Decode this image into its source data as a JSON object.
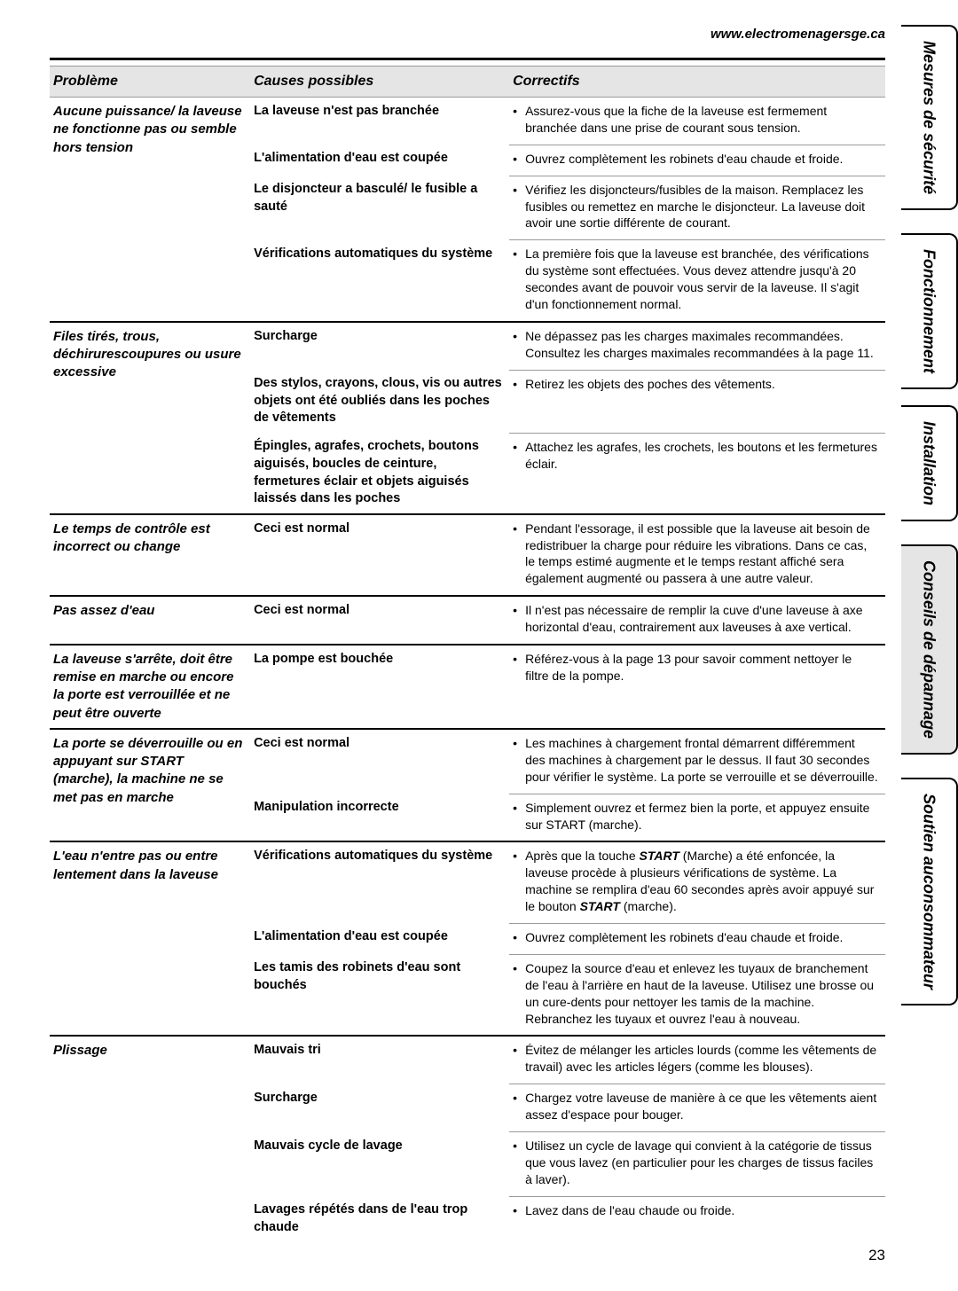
{
  "url": "www.electromenagersge.ca",
  "headers": {
    "problem": "Problème",
    "causes": "Causes possibles",
    "correctives": "Correctifs"
  },
  "tabs": {
    "t1": "Mesures de sécurité",
    "t2": "Fonctionnement",
    "t3": "Installation",
    "t4": "Conseils de dépannage",
    "t5a": "Soutien au",
    "t5b": "consommateur"
  },
  "rows": {
    "r1": {
      "problem": "Aucune puissance/ la laveuse ne fonctionne pas ou semble hors tension",
      "c1": {
        "cause": "La laveuse n'est pas branchée",
        "corr": "Assurez-vous que la fiche de la laveuse est fermement branchée dans une prise de courant sous tension."
      },
      "c2": {
        "cause": "L'alimentation d'eau est coupée",
        "corr": "Ouvrez complètement les robinets d'eau chaude et froide."
      },
      "c3": {
        "cause": "Le disjoncteur a basculé/ le fusible a sauté",
        "corr": "Vérifiez les disjoncteurs/fusibles de la maison. Remplacez les fusibles ou remettez en marche le disjoncteur. La laveuse doit avoir une sortie différente de courant."
      },
      "c4": {
        "cause": "Vérifications automatiques du système",
        "corr": "La première fois que la laveuse est branchée, des vérifications du système sont effectuées. Vous devez attendre jusqu'à 20 secondes avant de pouvoir vous servir de la laveuse. Il s'agit d'un fonctionnement normal."
      }
    },
    "r2": {
      "problem": "Files tirés, trous, déchirurescoupures ou usure excessive",
      "c1": {
        "cause": "Surcharge",
        "corr": "Ne dépassez pas les charges maximales recommandées. Consultez les charges maximales recommandées à la page 11."
      },
      "c2": {
        "cause": "Des stylos, crayons, clous, vis ou autres objets ont été oubliés dans les poches de vêtements",
        "corr": "Retirez les objets des poches des vêtements."
      },
      "c3": {
        "cause": "Épingles, agrafes, crochets, boutons aiguisés, boucles de ceinture, fermetures éclair et objets aiguisés laissés dans les poches",
        "corr": "Attachez les agrafes, les crochets, les boutons et les fermetures éclair."
      }
    },
    "r3": {
      "problem": "Le temps de contrôle est incorrect ou change",
      "c1": {
        "cause": "Ceci est normal",
        "corr": "Pendant l'essorage, il est possible que la laveuse ait besoin de redistribuer la charge pour réduire les vibrations. Dans ce cas, le temps estimé augmente et le temps restant affiché sera également augmenté ou passera à une autre valeur."
      }
    },
    "r4": {
      "problem": "Pas assez d'eau",
      "c1": {
        "cause": "Ceci est normal",
        "corr": "Il n'est pas nécessaire de remplir la cuve d'une laveuse à axe horizontal d'eau, contrairement aux laveuses à axe vertical."
      }
    },
    "r5": {
      "problem": "La laveuse s'arrête, doit être remise en marche ou encore la porte est verrouillée et ne peut être ouverte",
      "c1": {
        "cause": "La pompe est bouchée",
        "corr": "Référez-vous à la page 13 pour savoir comment nettoyer le filtre de la pompe."
      }
    },
    "r6": {
      "problem": "La porte se déverrouille ou en appuyant sur START (marche), la machine ne se met pas en marche",
      "c1": {
        "cause": "Ceci est normal",
        "corr": "Les machines à chargement frontal démarrent différemment des machines à chargement par le dessus. Il faut 30 secondes pour vérifier le système. La porte se verrouille et se déverrouille."
      },
      "c2": {
        "cause": "Manipulation incorrecte",
        "corr": "Simplement ouvrez et fermez bien la porte, et appuyez ensuite sur START (marche)."
      }
    },
    "r7": {
      "problem": "L'eau n'entre pas ou entre lentement dans la laveuse",
      "c1": {
        "cause": "Vérifications automatiques du système",
        "corr_html": "Après que la touche <em class='it'>START</em> (Marche) a été enfoncée, la laveuse procède à plusieurs vérifications de système. La machine se remplira d'eau 60 secondes après avoir appuyé sur le bouton <em class='it'>START</em> (marche)."
      },
      "c2": {
        "cause": "L'alimentation d'eau est coupée",
        "corr": "Ouvrez complètement les robinets d'eau chaude et froide."
      },
      "c3": {
        "cause": "Les tamis des robinets d'eau sont bouchés",
        "corr": "Coupez la source d'eau et enlevez les tuyaux de branchement de l'eau à l'arrière en haut de la laveuse. Utilisez une brosse ou un cure-dents pour nettoyer les tamis de la machine. Rebranchez les tuyaux et ouvrez l'eau à nouveau."
      }
    },
    "r8": {
      "problem": "Plissage",
      "c1": {
        "cause": "Mauvais tri",
        "corr": "Évitez de mélanger les articles lourds (comme les vêtements de travail) avec les articles légers (comme les blouses)."
      },
      "c2": {
        "cause": "Surcharge",
        "corr": "Chargez votre laveuse de manière à ce que les vêtements aient assez d'espace pour bouger."
      },
      "c3": {
        "cause": "Mauvais cycle de lavage",
        "corr": "Utilisez un cycle de lavage qui convient à la catégorie de tissus que vous lavez (en particulier pour les charges de tissus faciles à laver)."
      },
      "c4": {
        "cause": "Lavages répétés dans de l'eau trop chaude",
        "corr": "Lavez dans de l'eau chaude ou froide."
      }
    }
  },
  "page_number": "23"
}
